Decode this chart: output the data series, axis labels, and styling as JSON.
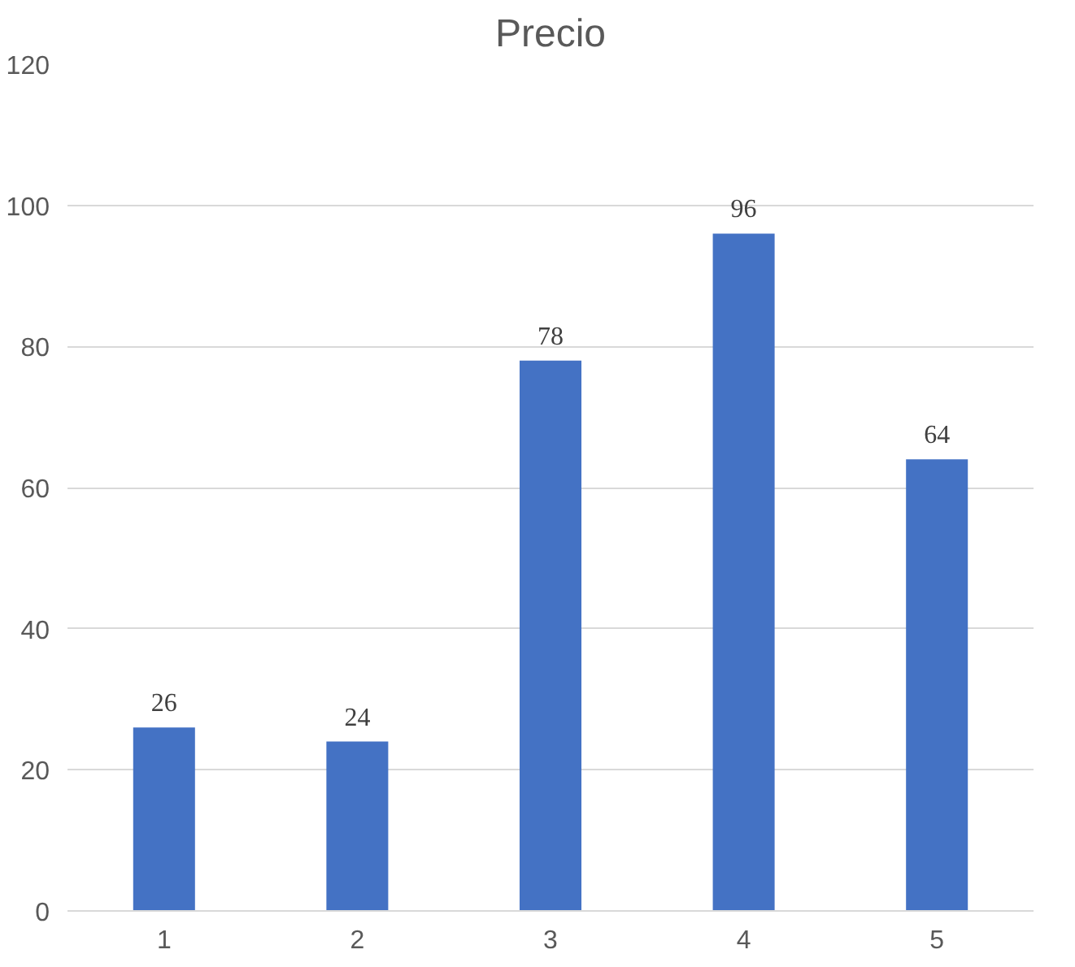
{
  "chart_data": {
    "type": "bar",
    "title": "Precio",
    "categories": [
      "1",
      "2",
      "3",
      "4",
      "5"
    ],
    "values": [
      26,
      24,
      78,
      96,
      64
    ],
    "color": "#4472c4",
    "ylim": [
      0,
      120
    ],
    "yticks": [
      0,
      20,
      40,
      60,
      80,
      100,
      120
    ],
    "grid": "y",
    "data_labels": true
  }
}
